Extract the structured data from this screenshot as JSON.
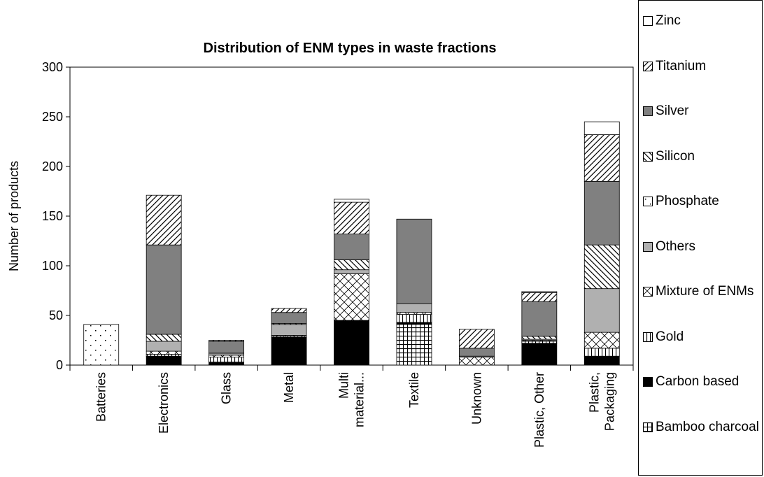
{
  "chart_data": {
    "type": "stacked-bar",
    "title": "Distribution of ENM types in waste fractions",
    "y_label": "Number of products",
    "categories": [
      "Batteries",
      "Electronics",
      "Glass",
      "Metal",
      "Multi material...",
      "Textile",
      "Unknown",
      "Plastic, Other",
      "Plastic, Packaging"
    ],
    "ylim": [
      0,
      300
    ],
    "yticks": [
      0,
      50,
      100,
      150,
      200,
      250,
      300
    ],
    "series": [
      {
        "name": "Bamboo charcoal",
        "color": "#000000",
        "pattern": "grid",
        "values": [
          0,
          0,
          0,
          0,
          0,
          41,
          0,
          0,
          0
        ]
      },
      {
        "name": "Carbon based",
        "color": "#000000",
        "pattern": "solid",
        "values": [
          0,
          9,
          3,
          28,
          45,
          2,
          0,
          22,
          9
        ]
      },
      {
        "name": "Gold",
        "color": "#000000",
        "pattern": "vertical",
        "values": [
          0,
          2,
          5,
          1,
          0,
          8,
          0,
          2,
          8
        ]
      },
      {
        "name": "Mixture of ENMs",
        "color": "#000000",
        "pattern": "cross",
        "values": [
          0,
          3,
          2,
          1,
          47,
          2,
          8,
          1,
          16
        ]
      },
      {
        "name": "Others",
        "color": "#b0b0b0",
        "pattern": "solid",
        "values": [
          0,
          10,
          2,
          11,
          4,
          9,
          1,
          1,
          44
        ]
      },
      {
        "name": "Phosphate",
        "color": "#000000",
        "pattern": "dots",
        "values": [
          41,
          0,
          0,
          0,
          0,
          0,
          0,
          0,
          0
        ]
      },
      {
        "name": "Silicon",
        "color": "#000000",
        "pattern": "diag-down",
        "values": [
          0,
          7,
          0,
          1,
          10,
          0,
          0,
          3,
          44
        ]
      },
      {
        "name": "Silver",
        "color": "#808080",
        "pattern": "solid",
        "values": [
          0,
          90,
          12,
          11,
          26,
          85,
          8,
          35,
          64
        ]
      },
      {
        "name": "Titanium",
        "color": "#000000",
        "pattern": "diag-up",
        "values": [
          0,
          50,
          1,
          4,
          32,
          0,
          19,
          9,
          47
        ]
      },
      {
        "name": "Zinc",
        "color": "#ffffff",
        "pattern": "solid",
        "values": [
          0,
          0,
          0,
          0,
          3,
          0,
          0,
          1,
          13
        ]
      }
    ]
  }
}
